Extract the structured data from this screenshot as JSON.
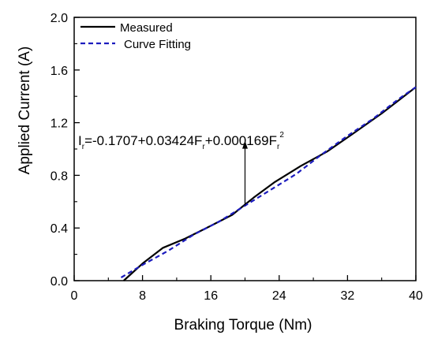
{
  "chart_data": {
    "type": "line",
    "xlabel": "Braking Torque (Nm)",
    "ylabel": "Applied Current (A)",
    "xlim": [
      0,
      40
    ],
    "ylim": [
      0,
      2.0
    ],
    "xticks": [
      0,
      8,
      16,
      24,
      32,
      40
    ],
    "yticks": [
      0.0,
      0.4,
      0.8,
      1.2,
      1.6,
      2.0
    ],
    "xtick_labels": [
      "0",
      "8",
      "16",
      "24",
      "32",
      "40"
    ],
    "ytick_labels": [
      "0.0",
      "0.4",
      "0.8",
      "1.2",
      "1.6",
      "2.0"
    ],
    "grid": false,
    "legend": "top-left",
    "series": [
      {
        "name": "Measured",
        "color": "#000000",
        "style": "solid",
        "x": [
          5.8,
          8.0,
          10.4,
          13.0,
          15.8,
          18.5,
          21.0,
          23.5,
          26.5,
          29.6,
          32.5,
          36.0,
          40.0
        ],
        "y": [
          0.0,
          0.13,
          0.25,
          0.32,
          0.41,
          0.5,
          0.63,
          0.75,
          0.87,
          0.98,
          1.11,
          1.27,
          1.47
        ]
      },
      {
        "name": "Curve Fitting",
        "color": "#1c1cbe",
        "style": "dashed",
        "x": [
          5.5,
          8.0,
          11.0,
          14.0,
          17.0,
          20.0,
          23.0,
          26.0,
          29.0,
          32.0,
          35.0,
          38.0,
          40.0
        ],
        "y": [
          0.024,
          0.12,
          0.227,
          0.35,
          0.45,
          0.57,
          0.69,
          0.81,
          0.96,
          1.1,
          1.23,
          1.38,
          1.47
        ]
      }
    ],
    "annotation": {
      "parts": [
        {
          "t": "I",
          "s": "n"
        },
        {
          "t": "r",
          "s": "sub"
        },
        {
          "t": "=-0.1707+0.03424F",
          "s": "n"
        },
        {
          "t": "r",
          "s": "sub"
        },
        {
          "t": "+0.000169F",
          "s": "n"
        },
        {
          "t": "r",
          "s": "sub"
        },
        {
          "t": "2",
          "s": "sup"
        }
      ],
      "point": [
        20,
        0.57
      ],
      "label_at": [
        20,
        1.05
      ]
    }
  }
}
